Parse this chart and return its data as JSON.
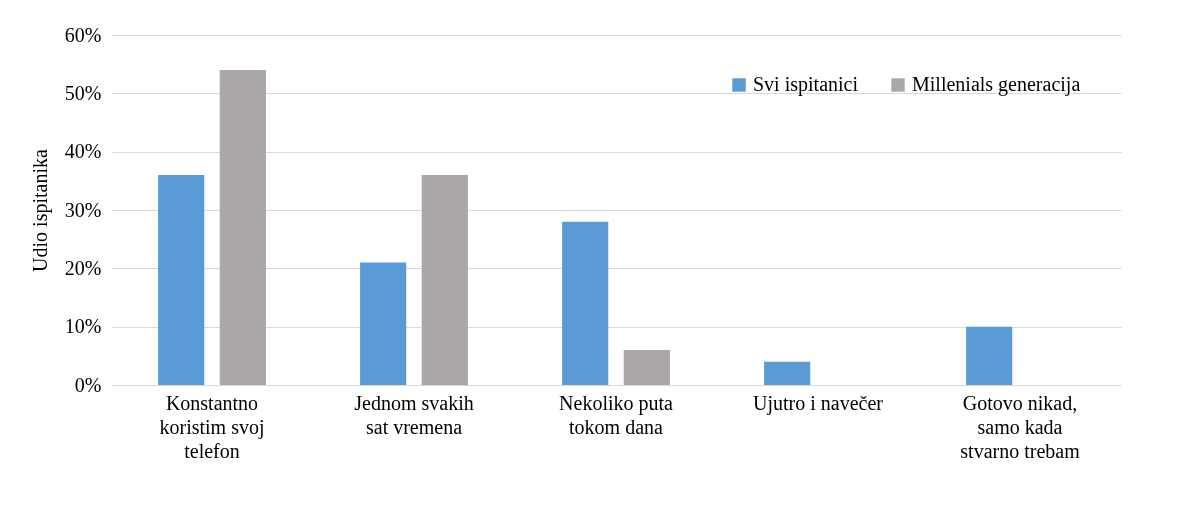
{
  "chart_data": {
    "type": "bar",
    "ylabel": "Udio ispitanika",
    "categories": [
      "Konstantno koristim svoj telefon",
      "Jednom svakih sat vremena",
      "Nekoliko puta tokom dana",
      "Ujutro i navečer",
      "Gotovo nikad, samo kada stvarno trebam"
    ],
    "series": [
      {
        "name": "Svi ispitanici",
        "color": "#5b9bd5",
        "values": [
          36,
          21,
          28,
          4,
          10
        ]
      },
      {
        "name": "Millenials generacija",
        "color": "#aba7a6",
        "values": [
          54,
          36,
          6,
          0,
          0
        ]
      }
    ],
    "ylim": [
      0,
      60
    ],
    "yticks": [
      {
        "value": 0,
        "label": "0%"
      },
      {
        "value": 10,
        "label": "10%"
      },
      {
        "value": 20,
        "label": "20%"
      },
      {
        "value": 30,
        "label": "30%"
      },
      {
        "value": 40,
        "label": "40%"
      },
      {
        "value": 50,
        "label": "50%"
      },
      {
        "value": 60,
        "label": "60%"
      }
    ],
    "grid": "y",
    "legend": "top right"
  }
}
